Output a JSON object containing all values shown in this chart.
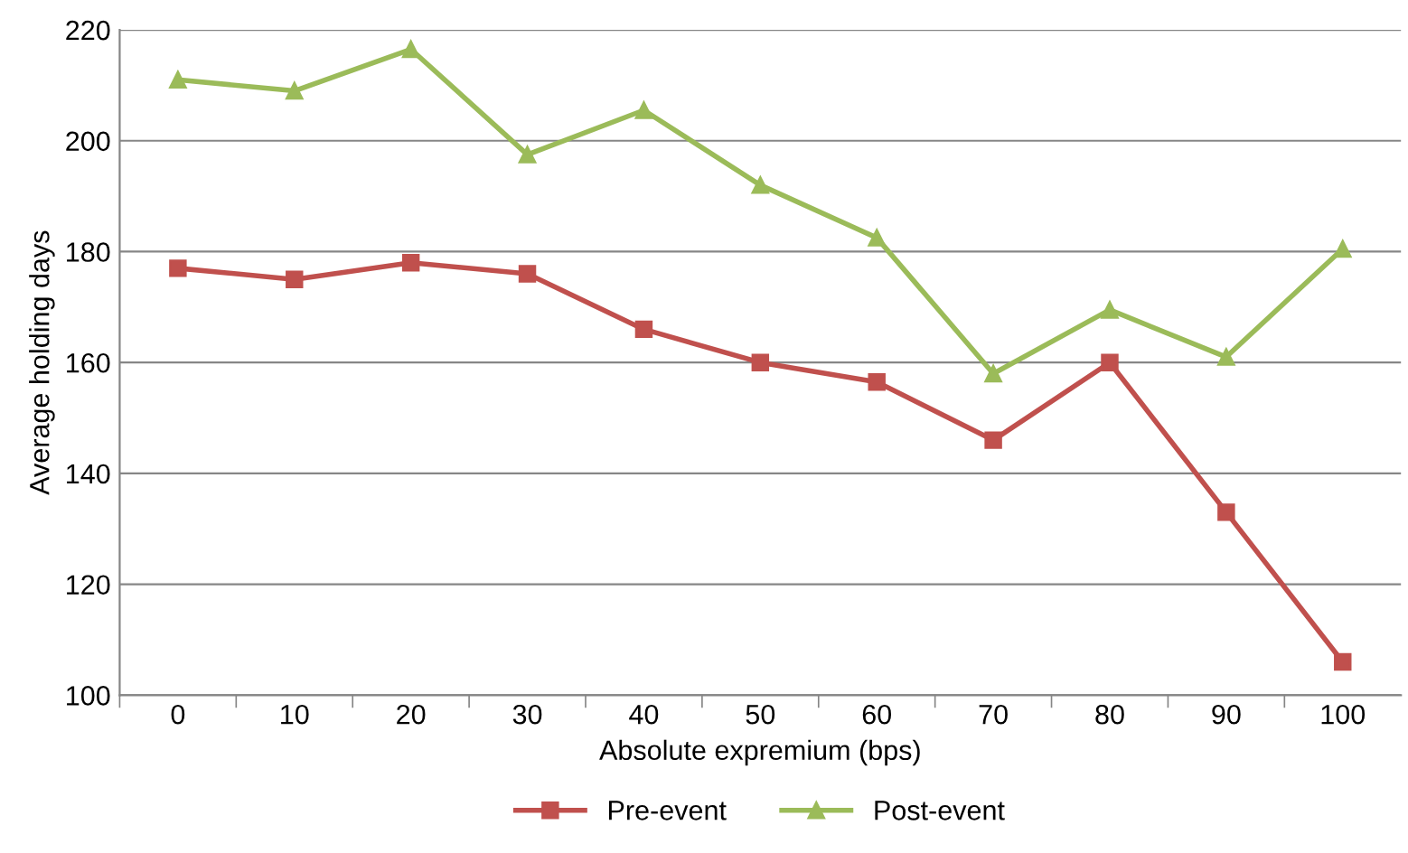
{
  "chart_data": {
    "type": "line",
    "xlabel": "Absolute expremium (bps)",
    "ylabel": "Average holding days",
    "categories": [
      "0",
      "10",
      "20",
      "30",
      "40",
      "50",
      "60",
      "70",
      "80",
      "90",
      "100"
    ],
    "ylim": [
      100,
      220
    ],
    "yticks": [
      100,
      120,
      140,
      160,
      180,
      200,
      220
    ],
    "grid": "y",
    "legend": "bottom",
    "series": [
      {
        "name": "Pre-event",
        "color": "#c0504d",
        "marker": "square",
        "values": [
          177,
          175,
          178,
          176,
          166,
          160,
          156.5,
          146,
          160,
          133,
          106
        ]
      },
      {
        "name": "Post-event",
        "color": "#9bbb59",
        "marker": "triangle",
        "values": [
          211,
          209,
          216.5,
          197.5,
          205.5,
          192,
          182.5,
          158,
          169.5,
          161,
          180.5
        ]
      }
    ]
  }
}
